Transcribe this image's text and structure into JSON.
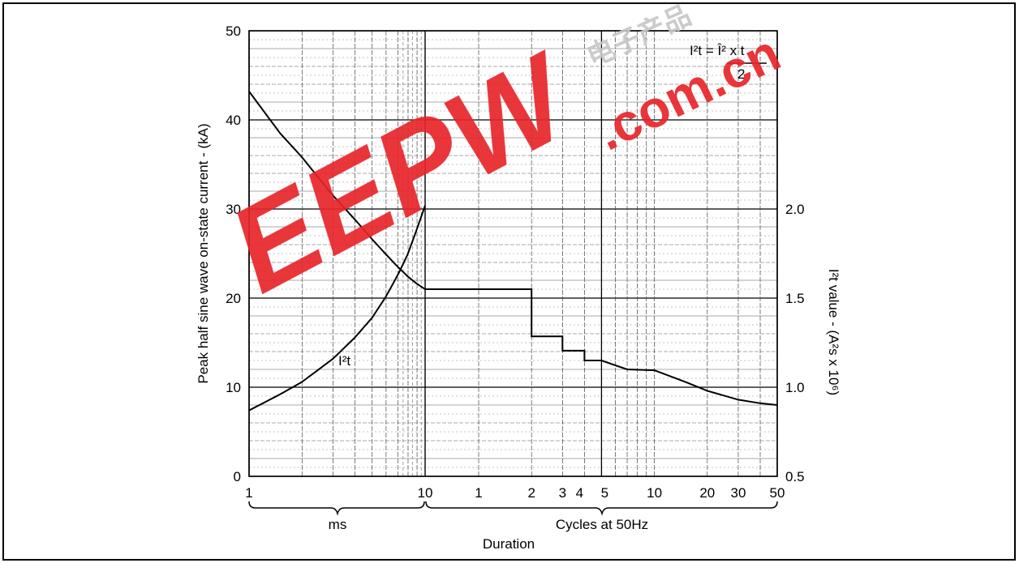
{
  "chart_data": {
    "type": "line",
    "xlabel": "Duration",
    "ylabel_left": "Peak half sine wave on-state current - (kA)",
    "ylabel_right_base": "I²t value - (A²s x 10⁶)",
    "ylim_left": [
      0,
      50
    ],
    "yticks_left": [
      "0",
      "10",
      "20",
      "30",
      "40",
      "50"
    ],
    "ylim_right": [
      0.5,
      2.0
    ],
    "yticks_right": [
      "0.5",
      "1.0",
      "1.5",
      "2.0"
    ],
    "x_ticks": [
      "1",
      "10",
      "1",
      "2",
      "3",
      "4",
      "5",
      "10",
      "20",
      "30",
      "50"
    ],
    "x_groups": [
      "ms",
      "Cycles at 50Hz"
    ],
    "x_scale": "log (two segments)",
    "formula": {
      "lhs": "I²t = Î² x t",
      "denominator": "2"
    },
    "series": [
      {
        "name": "",
        "unit": "kA",
        "axis": "left",
        "segment_ms": {
          "x": [
            1,
            1.5,
            2,
            3,
            4,
            5,
            6,
            7,
            8,
            9,
            10
          ],
          "y": [
            43.2,
            38.5,
            35.8,
            31.5,
            28.8,
            26.6,
            24.9,
            23.5,
            22.4,
            21.6,
            21.0
          ]
        },
        "segment_cycles": {
          "x": [
            1,
            2,
            2,
            3,
            3,
            4,
            4,
            5,
            7,
            10,
            15,
            20,
            30,
            40,
            50
          ],
          "y": [
            21.0,
            21.0,
            15.7,
            15.7,
            14.1,
            14.1,
            13.0,
            13.0,
            12.0,
            11.9,
            10.6,
            9.6,
            8.6,
            8.2,
            8.0
          ]
        }
      },
      {
        "name": "I²t",
        "unit": "A²s x 10⁶",
        "axis": "right",
        "segment_ms": {
          "x": [
            1,
            1.5,
            2,
            3,
            4,
            5,
            6,
            7,
            8,
            9,
            10
          ],
          "y": [
            0.87,
            0.96,
            1.03,
            1.16,
            1.28,
            1.39,
            1.51,
            1.63,
            1.75,
            1.89,
            2.02
          ]
        }
      }
    ],
    "annotations": [
      "I²t"
    ]
  }
}
